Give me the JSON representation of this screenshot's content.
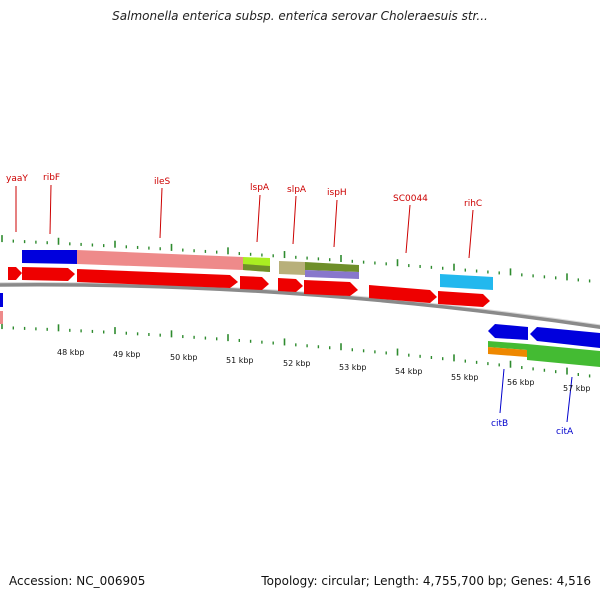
{
  "header": {
    "title": "Salmonella enterica subsp. enterica serovar Choleraesuis str..."
  },
  "footer": {
    "accession": "Accession: NC_006905",
    "summary": "Topology: circular; Length: 4,755,700 bp; Genes: 4,516"
  },
  "colors": {
    "backbone": "#8a8a8a",
    "tick": "#2e8b2e",
    "forward_label": "#cc0000",
    "reverse_label": "#0000cc",
    "red": "#ee0000",
    "pink": "#ee8a8a",
    "blue": "#0000dd",
    "cyan": "#22b8ee",
    "green": "#44bb33",
    "olive": "#6f8f2a",
    "lime": "#aaee22",
    "tan": "#b8b07a",
    "purple": "#8877cc",
    "orange": "#ee8800"
  },
  "scale_labels": [
    "48 kbp",
    "49 kbp",
    "50 kbp",
    "51 kbp",
    "52 kbp",
    "53 kbp",
    "54 kbp",
    "55 kbp",
    "56 kbp",
    "57 kbp"
  ],
  "gene_labels": {
    "forward": [
      "yaaY",
      "ribF",
      "ileS",
      "lspA",
      "slpA",
      "ispH",
      "SC0044",
      "rihC"
    ],
    "reverse": [
      "citB",
      "citA"
    ]
  }
}
